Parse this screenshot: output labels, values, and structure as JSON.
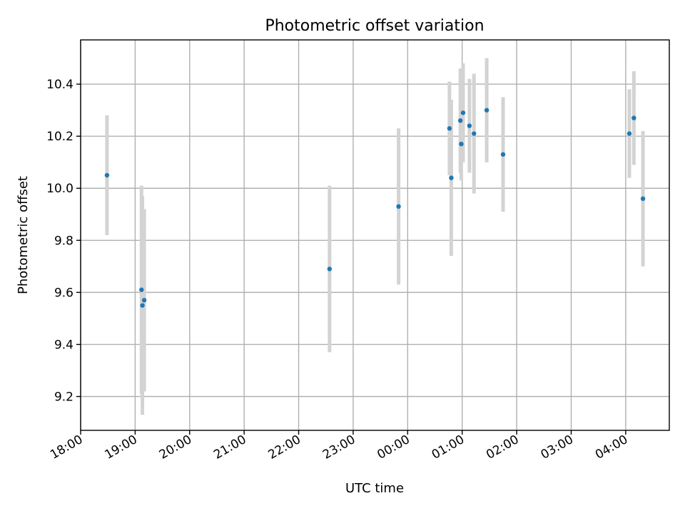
{
  "chart_data": {
    "type": "scatter",
    "title": "Photometric offset variation",
    "xlabel": "UTC time",
    "ylabel": "Photometric offset",
    "grid": true,
    "x_axis_type": "time",
    "xlim": [
      "18:00",
      "04:48"
    ],
    "ylim": [
      9.07,
      10.57
    ],
    "x_ticks": [
      "18:00",
      "19:00",
      "20:00",
      "21:00",
      "22:00",
      "23:00",
      "00:00",
      "01:00",
      "02:00",
      "03:00",
      "04:00"
    ],
    "y_ticks": [
      "9.2",
      "9.4",
      "9.6",
      "9.8",
      "10.0",
      "10.2",
      "10.4"
    ],
    "point_color": "#1f77b4",
    "errorbar_color": "#d3d3d3",
    "points": [
      {
        "time": "18:29",
        "y": 10.05,
        "err": 0.23
      },
      {
        "time": "19:07",
        "y": 9.61,
        "err": 0.4
      },
      {
        "time": "19:08",
        "y": 9.55,
        "err": 0.42
      },
      {
        "time": "19:10",
        "y": 9.57,
        "err": 0.35
      },
      {
        "time": "22:34",
        "y": 9.69,
        "err": 0.32
      },
      {
        "time": "23:50",
        "y": 9.93,
        "err": 0.3
      },
      {
        "time": "00:46",
        "y": 10.23,
        "err": 0.18
      },
      {
        "time": "00:48",
        "y": 10.04,
        "err": 0.3
      },
      {
        "time": "00:58",
        "y": 10.26,
        "err": 0.2
      },
      {
        "time": "00:59",
        "y": 10.17,
        "err": 0.14
      },
      {
        "time": "01:01",
        "y": 10.29,
        "err": 0.19
      },
      {
        "time": "01:08",
        "y": 10.24,
        "err": 0.18
      },
      {
        "time": "01:13",
        "y": 10.21,
        "err": 0.23
      },
      {
        "time": "01:27",
        "y": 10.3,
        "err": 0.2
      },
      {
        "time": "01:45",
        "y": 10.13,
        "err": 0.22
      },
      {
        "time": "04:04",
        "y": 10.21,
        "err": 0.17
      },
      {
        "time": "04:09",
        "y": 10.27,
        "err": 0.18
      },
      {
        "time": "04:19",
        "y": 9.96,
        "err": 0.26
      }
    ]
  }
}
